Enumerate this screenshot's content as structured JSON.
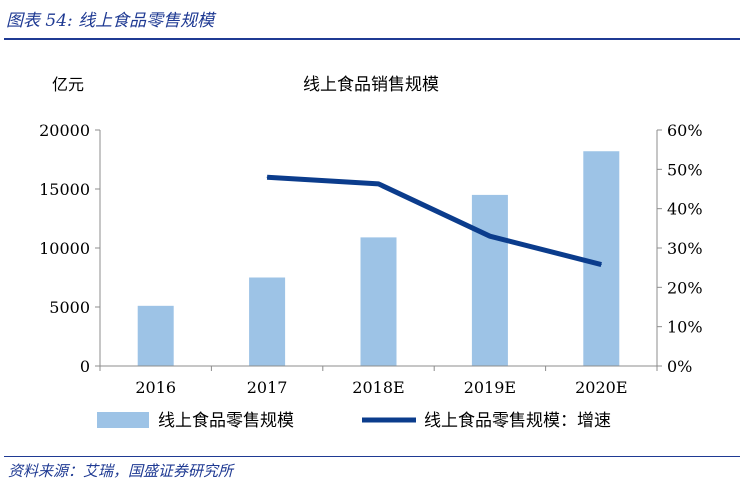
{
  "figure": {
    "caption": "图表 54:  线上食品零售规模",
    "source": "资料来源：艾瑞，国盛证券研究所"
  },
  "chart_data": {
    "type": "bar",
    "title": "线上食品销售规模",
    "y_unit_label": "亿元",
    "categories": [
      "2016",
      "2017",
      "2018E",
      "2019E",
      "2020E"
    ],
    "ylim": [
      0,
      20000
    ],
    "yticks": [
      0,
      5000,
      10000,
      15000,
      20000
    ],
    "y2lim": [
      0,
      0.6
    ],
    "y2ticks": [
      "0%",
      "10%",
      "20%",
      "30%",
      "40%",
      "50%",
      "60%"
    ],
    "legend_position": "bottom",
    "grid": false,
    "series": [
      {
        "name": "线上食品零售规模",
        "type": "bar",
        "axis": "left",
        "color": "#9dc3e6",
        "values": [
          5100,
          7500,
          10900,
          14500,
          18200
        ]
      },
      {
        "name": "线上食品零售规模：增速",
        "type": "line",
        "axis": "right",
        "color": "#0b3c8c",
        "values": [
          null,
          0.48,
          0.463,
          0.33,
          0.258
        ]
      }
    ]
  }
}
